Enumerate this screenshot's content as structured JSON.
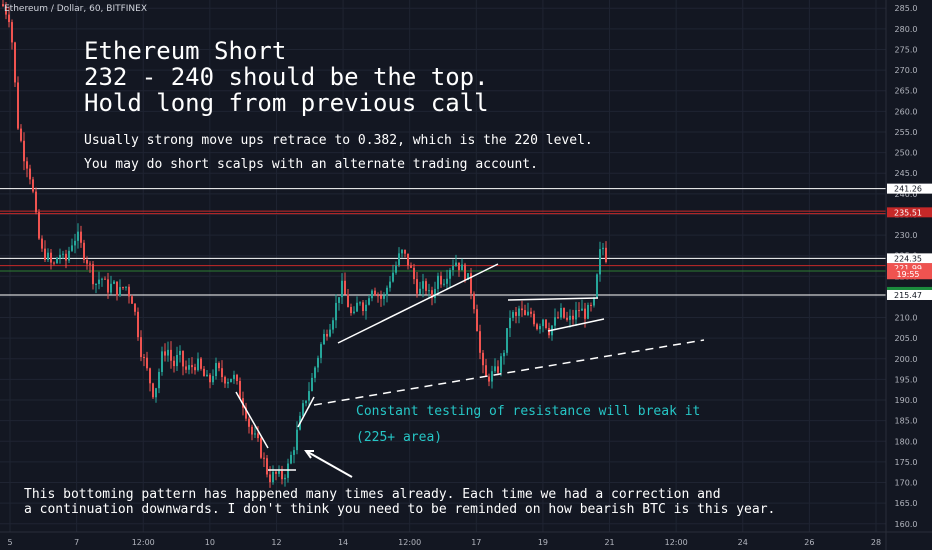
{
  "symbol": "Ethereum / Dollar, 60, BITFINEX",
  "annotations": {
    "title1": "Ethereum Short",
    "title2": "232 - 240 should be the top.",
    "title3": "Hold long from previous call",
    "note1": "Usually strong move ups retrace to 0.382, which is the 220 level.",
    "note2": "You may do short scalps with an alternate trading account.",
    "teal1": "Constant testing of resistance will break it",
    "teal2": "(225+ area)",
    "bottom1": "This bottoming pattern has happened many times already. Each time we had a correction and",
    "bottom2": "a continuation downwards. I don't think you need to be reminded on how bearish BTC is this year."
  },
  "colors": {
    "background": "#131722",
    "grid": "#1f2432",
    "up": "#26a69a",
    "down": "#ef5350",
    "axis_text": "#b2b5be",
    "line_white": "#ffffff",
    "line_red": "#c62828",
    "line_green": "#2e7d32"
  },
  "chart_data": {
    "type": "candlestick",
    "title": "Ethereum / Dollar, 60, BITFINEX",
    "y_ticks": [
      160,
      165,
      170,
      175,
      180,
      185,
      190,
      195,
      200,
      205,
      210,
      215,
      220,
      225,
      230,
      235,
      240,
      245,
      250,
      255,
      260,
      265,
      270,
      275,
      280,
      285
    ],
    "ylim": [
      158,
      287
    ],
    "x_ticks": [
      "5",
      "7",
      "12:00",
      "10",
      "12",
      "14",
      "12:00",
      "17",
      "19",
      "21",
      "12:00",
      "24",
      "26",
      "28"
    ],
    "price_labels": [
      {
        "value": 241.26,
        "text": "241.26",
        "bg": "#ffffff",
        "fg": "#131722"
      },
      {
        "value": 235.51,
        "text": "235.51",
        "bg": "#c62828",
        "fg": "#ffffff"
      },
      {
        "value": 224.35,
        "text": "224.35",
        "bg": "#ffffff",
        "fg": "#131722"
      },
      {
        "value": 221.99,
        "text": "221.99",
        "bg": "#ef5350",
        "fg": "#ffffff"
      },
      {
        "value": 220.5,
        "text": "19:55",
        "bg": "#ef5350",
        "fg": "#ffffff"
      },
      {
        "value": 215.47,
        "text": "215.47",
        "bg": "#ffffff",
        "fg": "#131722"
      }
    ],
    "horizontal_lines": [
      {
        "value": 241.26,
        "color": "#ffffff"
      },
      {
        "value": 235.8,
        "color": "#c62828"
      },
      {
        "value": 235.2,
        "color": "#c62828"
      },
      {
        "value": 224.35,
        "color": "#ffffff"
      },
      {
        "value": 222.6,
        "color": "#c62828"
      },
      {
        "value": 221.3,
        "color": "#2e7d32"
      },
      {
        "value": 215.47,
        "color": "#ffffff"
      }
    ],
    "price_path": [
      [
        1,
        286
      ],
      [
        8,
        283
      ],
      [
        12,
        275
      ],
      [
        16,
        258
      ],
      [
        22,
        250
      ],
      [
        28,
        246
      ],
      [
        32,
        240
      ],
      [
        36,
        232
      ],
      [
        40,
        226
      ],
      [
        46,
        225
      ],
      [
        52,
        222
      ],
      [
        58,
        226
      ],
      [
        64,
        223
      ],
      [
        70,
        228
      ],
      [
        76,
        230
      ],
      [
        82,
        226
      ],
      [
        88,
        223
      ],
      [
        94,
        218
      ],
      [
        100,
        220
      ],
      [
        106,
        217
      ],
      [
        112,
        218
      ],
      [
        118,
        216
      ],
      [
        124,
        218
      ],
      [
        128,
        216
      ],
      [
        132,
        214
      ],
      [
        136,
        208
      ],
      [
        140,
        202
      ],
      [
        146,
        197
      ],
      [
        152,
        192
      ],
      [
        156,
        194
      ],
      [
        160,
        200
      ],
      [
        166,
        203
      ],
      [
        172,
        198
      ],
      [
        178,
        201
      ],
      [
        184,
        197
      ],
      [
        190,
        198
      ],
      [
        196,
        199
      ],
      [
        202,
        196
      ],
      [
        208,
        194
      ],
      [
        214,
        198
      ],
      [
        220,
        196
      ],
      [
        226,
        195
      ],
      [
        232,
        196
      ],
      [
        238,
        192
      ],
      [
        244,
        188
      ],
      [
        250,
        182
      ],
      [
        256,
        180
      ],
      [
        262,
        176
      ],
      [
        268,
        171
      ],
      [
        274,
        172
      ],
      [
        280,
        171
      ],
      [
        286,
        173
      ],
      [
        292,
        178
      ],
      [
        298,
        184
      ],
      [
        304,
        190
      ],
      [
        310,
        194
      ],
      [
        316,
        200
      ],
      [
        322,
        205
      ],
      [
        328,
        208
      ],
      [
        334,
        212
      ],
      [
        340,
        218
      ],
      [
        346,
        214
      ],
      [
        352,
        209
      ],
      [
        358,
        215
      ],
      [
        364,
        212
      ],
      [
        370,
        218
      ],
      [
        376,
        216
      ],
      [
        382,
        214
      ],
      [
        388,
        219
      ],
      [
        394,
        222
      ],
      [
        400,
        226
      ],
      [
        406,
        224
      ],
      [
        412,
        220
      ],
      [
        418,
        216
      ],
      [
        424,
        218
      ],
      [
        430,
        214
      ],
      [
        436,
        220
      ],
      [
        442,
        219
      ],
      [
        448,
        222
      ],
      [
        454,
        224
      ],
      [
        460,
        222
      ],
      [
        466,
        220
      ],
      [
        472,
        215
      ],
      [
        476,
        208
      ],
      [
        480,
        199
      ],
      [
        484,
        195
      ],
      [
        490,
        196
      ],
      [
        496,
        197
      ],
      [
        502,
        201
      ],
      [
        506,
        206
      ],
      [
        510,
        212
      ],
      [
        514,
        209
      ],
      [
        518,
        212
      ],
      [
        524,
        210
      ],
      [
        530,
        211
      ],
      [
        536,
        208
      ],
      [
        542,
        210
      ],
      [
        548,
        207
      ],
      [
        554,
        209
      ],
      [
        560,
        211
      ],
      [
        566,
        209
      ],
      [
        572,
        210
      ],
      [
        578,
        212
      ],
      [
        584,
        211
      ],
      [
        590,
        212
      ],
      [
        594,
        214
      ],
      [
        598,
        225
      ],
      [
        602,
        227
      ],
      [
        606,
        224
      ],
      [
        608,
        222.5
      ]
    ]
  }
}
